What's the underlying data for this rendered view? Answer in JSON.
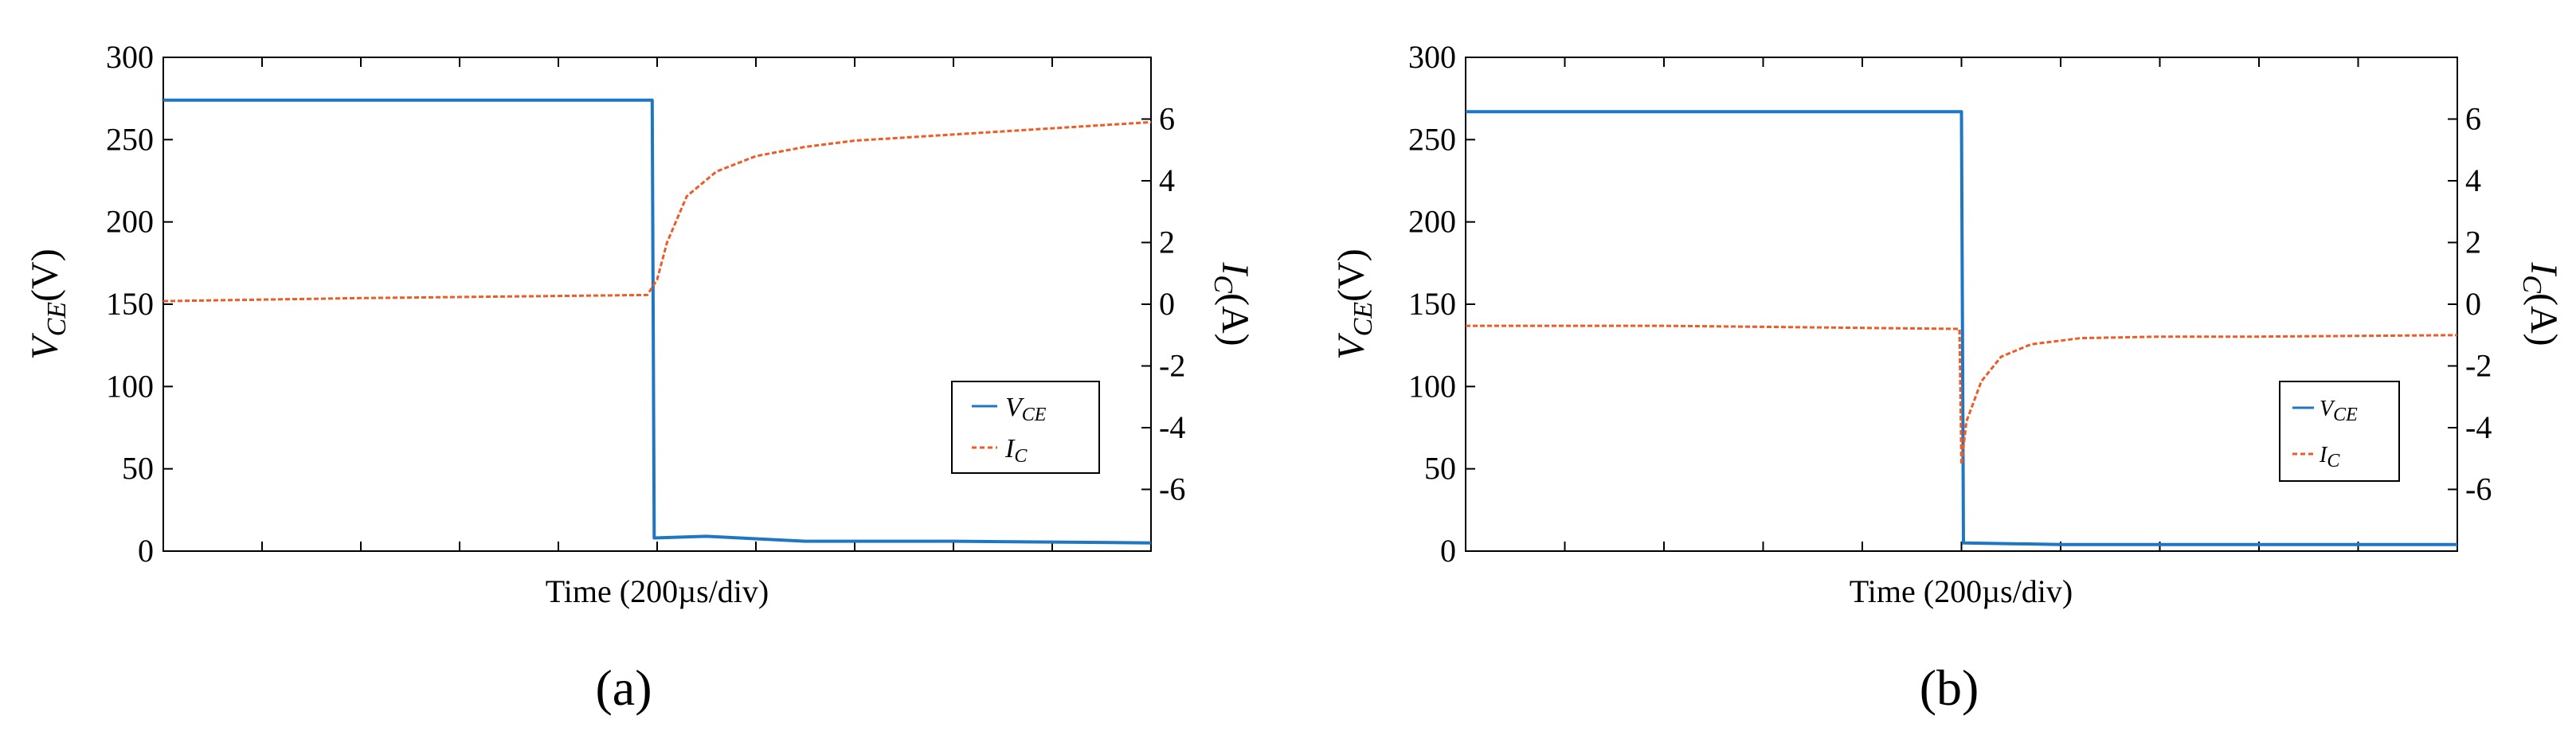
{
  "chart_data": [
    {
      "type": "line",
      "panel_label": "(a)",
      "xlabel": "Time (200µs/div)",
      "ylabel_main": "V",
      "ylabel_sub": "CE",
      "ylabel_unit": "(V)",
      "y2label_main": "I",
      "y2label_sub": "C",
      "y2label_unit": "(A)",
      "ylim": [
        0,
        300
      ],
      "y2lim": [
        -8,
        8
      ],
      "yticks": [
        0,
        50,
        100,
        150,
        200,
        250,
        300
      ],
      "y2ticks": [
        -6,
        -4,
        -2,
        0,
        2,
        4,
        6
      ],
      "x_divisions": 10,
      "legend_position": "lower-right",
      "series": [
        {
          "name_main": "V",
          "name_sub": "CE",
          "color": "#1f77c4",
          "style": "solid",
          "axis": "left",
          "points": [
            [
              0,
              274
            ],
            [
              4.95,
              274
            ],
            [
              4.97,
              8
            ],
            [
              5.5,
              9
            ],
            [
              6.5,
              6
            ],
            [
              8,
              6
            ],
            [
              10,
              5
            ]
          ]
        },
        {
          "name_main": "I",
          "name_sub": "C",
          "color": "#ef5b25",
          "style": "dashed",
          "axis": "right",
          "points": [
            [
              0,
              0.1
            ],
            [
              2,
              0.2
            ],
            [
              4.9,
              0.3
            ],
            [
              5.0,
              0.8
            ],
            [
              5.1,
              2.0
            ],
            [
              5.3,
              3.5
            ],
            [
              5.6,
              4.3
            ],
            [
              6.0,
              4.8
            ],
            [
              6.5,
              5.1
            ],
            [
              7.0,
              5.3
            ],
            [
              8.0,
              5.5
            ],
            [
              9.0,
              5.7
            ],
            [
              10,
              5.9
            ]
          ]
        }
      ]
    },
    {
      "type": "line",
      "panel_label": "(b)",
      "xlabel": "Time (200µs/div)",
      "ylabel_main": "V",
      "ylabel_sub": "CE",
      "ylabel_unit": "(V)",
      "y2label_main": "I",
      "y2label_sub": "C",
      "y2label_unit": "(A)",
      "ylim": [
        0,
        300
      ],
      "y2lim": [
        -8,
        8
      ],
      "yticks": [
        0,
        50,
        100,
        150,
        200,
        250,
        300
      ],
      "y2ticks": [
        -6,
        -4,
        -2,
        0,
        2,
        4,
        6
      ],
      "x_divisions": 10,
      "legend_position": "lower-right",
      "series": [
        {
          "name_main": "V",
          "name_sub": "CE",
          "color": "#1f77c4",
          "style": "solid",
          "axis": "left",
          "points": [
            [
              0,
              267
            ],
            [
              5.0,
              267
            ],
            [
              5.02,
              5
            ],
            [
              6,
              4
            ],
            [
              8,
              4
            ],
            [
              10,
              4
            ]
          ]
        },
        {
          "name_main": "I",
          "name_sub": "C",
          "color": "#ef5b25",
          "style": "dashed",
          "axis": "right",
          "points": [
            [
              0,
              -0.7
            ],
            [
              2,
              -0.7
            ],
            [
              4.98,
              -0.8
            ],
            [
              5.0,
              -5.2
            ],
            [
              5.05,
              -3.8
            ],
            [
              5.2,
              -2.5
            ],
            [
              5.4,
              -1.7
            ],
            [
              5.7,
              -1.3
            ],
            [
              6.2,
              -1.1
            ],
            [
              7,
              -1.05
            ],
            [
              8,
              -1.05
            ],
            [
              10,
              -1.0
            ]
          ]
        }
      ]
    }
  ]
}
